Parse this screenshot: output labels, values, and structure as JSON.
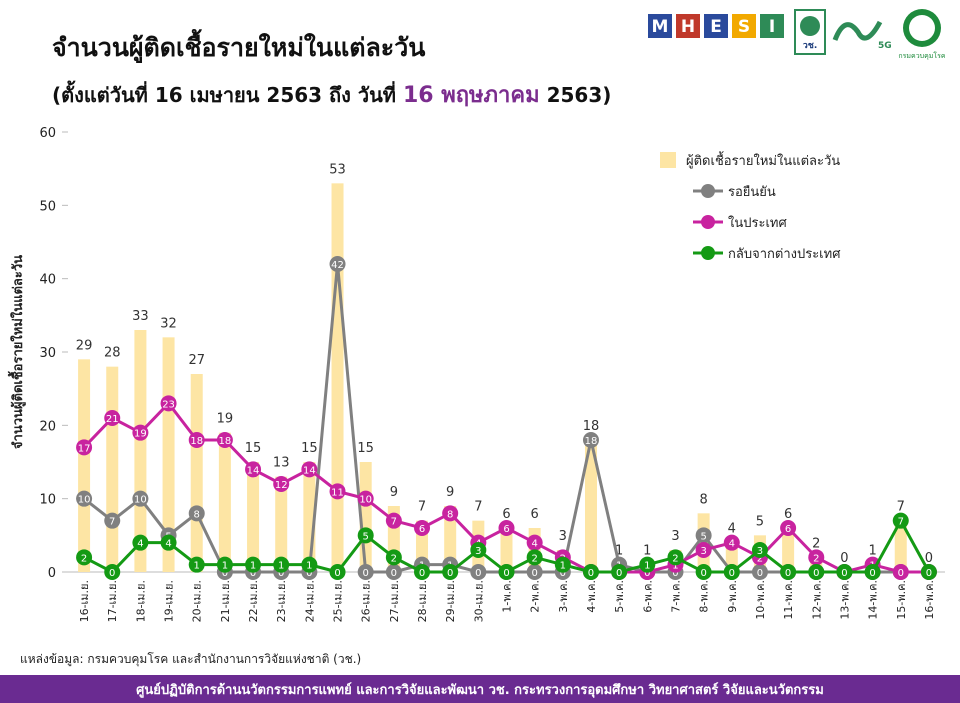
{
  "chart_data": {
    "type": "bar-line",
    "title": "จำนวนผู้ติดเชื้อรายใหม่ในแต่ละวัน",
    "subtitle": [
      "(ตั้งแต่วันที่ 16 เมษายน 2563 ถึง วันที่",
      "16 พฤษภาคม",
      "2563)"
    ],
    "y_label": "จำนวนผู้ติดเชื้อรายใหม่ในแต่ละวัน",
    "categories": [
      "16-เม.ย.",
      "17-เม.ย.",
      "18-เม.ย.",
      "19-เม.ย.",
      "20-เม.ย.",
      "21-เม.ย.",
      "22-เม.ย.",
      "23-เม.ย.",
      "24-เม.ย.",
      "25-เม.ย.",
      "26-เม.ย.",
      "27-เม.ย.",
      "28-เม.ย.",
      "29-เม.ย.",
      "30-เม.ย.",
      "1-พ.ค.",
      "2-พ.ค.",
      "3-พ.ค.",
      "4-พ.ค.",
      "5-พ.ค.",
      "6-พ.ค.",
      "7-พ.ค.",
      "8-พ.ค.",
      "9-พ.ค.",
      "10-พ.ค.",
      "11-พ.ค.",
      "12-พ.ค.",
      "13-พ.ค.",
      "14-พ.ค.",
      "15-พ.ค.",
      "16-พ.ค."
    ],
    "series": [
      {
        "name": "ผู้ติดเชื้อรายใหม่ในแต่ละวัน",
        "kind": "bar",
        "color": "#fde5a4",
        "values": [
          29,
          28,
          33,
          32,
          27,
          19,
          15,
          13,
          15,
          53,
          15,
          9,
          7,
          9,
          7,
          6,
          6,
          3,
          18,
          1,
          1,
          3,
          8,
          4,
          5,
          6,
          2,
          0,
          1,
          7,
          0
        ]
      },
      {
        "name": "รอยืนยัน",
        "kind": "line",
        "color": "#808080",
        "values": [
          10,
          7,
          10,
          5,
          8,
          0,
          0,
          0,
          0,
          42,
          0,
          0,
          1,
          1,
          0,
          0,
          0,
          0,
          18,
          1,
          0,
          0,
          5,
          0,
          0,
          0,
          0,
          0,
          0,
          0,
          0
        ]
      },
      {
        "name": "ในประเทศ",
        "kind": "line",
        "color": "#c8239f",
        "values": [
          17,
          21,
          19,
          23,
          18,
          18,
          14,
          12,
          14,
          11,
          10,
          7,
          6,
          8,
          4,
          6,
          4,
          2,
          0,
          0,
          0,
          1,
          3,
          4,
          2,
          6,
          2,
          0,
          1,
          0,
          0
        ]
      },
      {
        "name": "กลับจากต่างประเทศ",
        "kind": "line",
        "color": "#149a14",
        "values": [
          2,
          0,
          4,
          4,
          1,
          1,
          1,
          1,
          1,
          0,
          5,
          2,
          0,
          0,
          3,
          0,
          2,
          1,
          0,
          0,
          1,
          2,
          0,
          0,
          3,
          0,
          0,
          0,
          0,
          7,
          0
        ]
      }
    ],
    "ylim": [
      0,
      60
    ],
    "yticks": [
      0,
      10,
      20,
      30,
      40,
      50,
      60
    ],
    "logos": [
      "M",
      "H",
      "E",
      "S",
      "I",
      "วช.",
      "5G",
      "กรมควบคุมโรค"
    ],
    "source": "แหล่งข้อมูล: กรมควบคุมโรค และสำนักงานการวิจัยแห่งชาติ (วช.)",
    "footer": "ศูนย์ปฏิบัติการด้านนวัตกรรมการแพทย์ และการวิจัยและพัฒนา   วช.   กระทรวงการอุดมศึกษา วิทยาศาสตร์ วิจัยและนวัตกรรม"
  }
}
